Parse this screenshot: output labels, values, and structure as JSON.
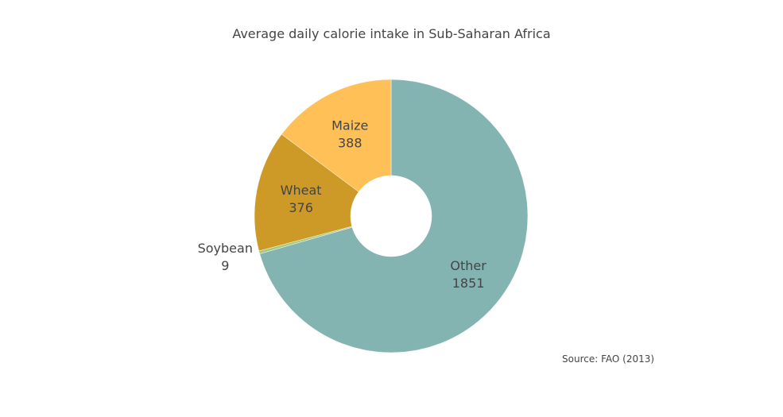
{
  "chart_data": {
    "type": "pie",
    "title": "Average daily calorie intake in Sub-Saharan Africa",
    "hole": true,
    "slices": [
      {
        "label": "Other",
        "value": 1851,
        "color": "#84b4b2"
      },
      {
        "label": "Soybean",
        "value": 9,
        "color": "#a4c97a"
      },
      {
        "label": "Wheat",
        "value": 376,
        "color": "#ce9a27"
      },
      {
        "label": "Maize",
        "value": 388,
        "color": "#ffc157"
      }
    ],
    "annotation": "Source: FAO (2013)"
  }
}
